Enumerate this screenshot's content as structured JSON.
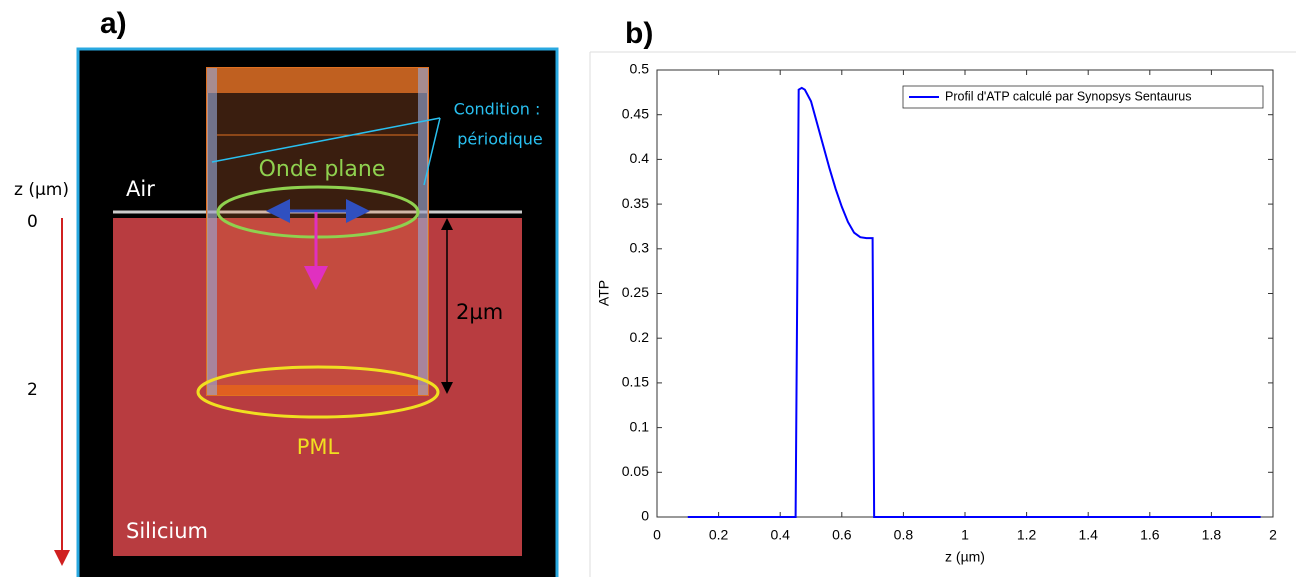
{
  "panel_a": {
    "title": "a)",
    "axis_label": "z (µm)",
    "depth_labels": [
      "0",
      "2"
    ],
    "air": "Air",
    "wave": "Onde plane",
    "condition": [
      "Condition :",
      "périodique"
    ],
    "height": "2µm",
    "pml": "PML",
    "substrate": "Silicium"
  },
  "chart_data": {
    "type": "line",
    "title": "b)",
    "xlabel": "z (µm)",
    "ylabel": "ATP",
    "x": [
      0.1,
      0.45,
      0.46,
      0.47,
      0.48,
      0.5,
      0.52,
      0.54,
      0.56,
      0.58,
      0.6,
      0.62,
      0.64,
      0.66,
      0.68,
      0.7,
      0.705,
      1.96
    ],
    "series": [
      {
        "name": "Profil d'ATP calculé par Synopsys Sentaurus",
        "color": "#0000ff",
        "values": [
          0,
          0,
          0.478,
          0.48,
          0.478,
          0.465,
          0.44,
          0.415,
          0.39,
          0.367,
          0.347,
          0.33,
          0.318,
          0.313,
          0.312,
          0.312,
          0,
          0
        ]
      }
    ],
    "xlim": [
      0,
      2
    ],
    "xticks": [
      0,
      0.2,
      0.4,
      0.6,
      0.8,
      1,
      1.2,
      1.4,
      1.6,
      1.8,
      2
    ],
    "ylim": [
      0,
      0.5
    ],
    "yticks": [
      0,
      0.05,
      0.1,
      0.15,
      0.2,
      0.25,
      0.3,
      0.35,
      0.4,
      0.45,
      0.5
    ],
    "grid": false,
    "legend": "upper right"
  }
}
